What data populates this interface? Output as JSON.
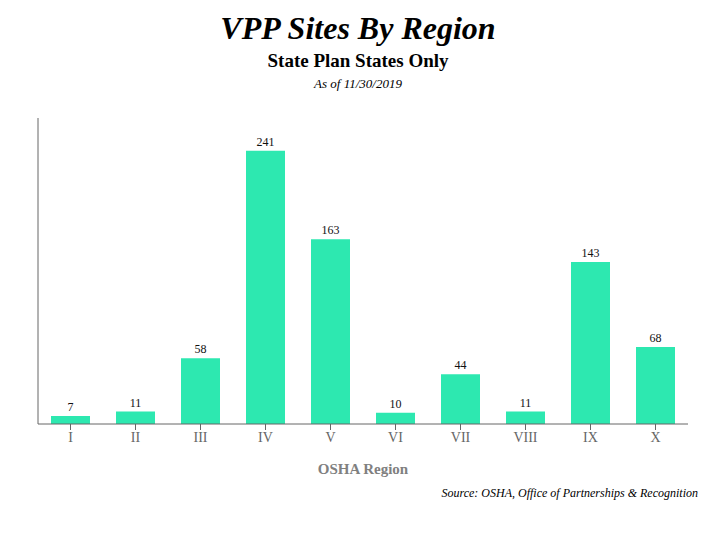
{
  "chart_data": {
    "type": "bar",
    "title": "VPP Sites By Region",
    "subtitle": "State Plan States Only",
    "annotations": [
      "As of 11/30/2019",
      "Source:  OSHA, Office of Partnerships & Recognition"
    ],
    "x_label": "OSHA Region",
    "categories": [
      "I",
      "II",
      "III",
      "IV",
      "V",
      "VI",
      "VII",
      "VIII",
      "IX",
      "X"
    ],
    "values": [
      7,
      11,
      58,
      241,
      163,
      10,
      44,
      11,
      143,
      68
    ],
    "color": "#2de8b0",
    "ylim": [
      0,
      270
    ],
    "grid": false,
    "data_labels": true,
    "tick_labels": "x"
  }
}
